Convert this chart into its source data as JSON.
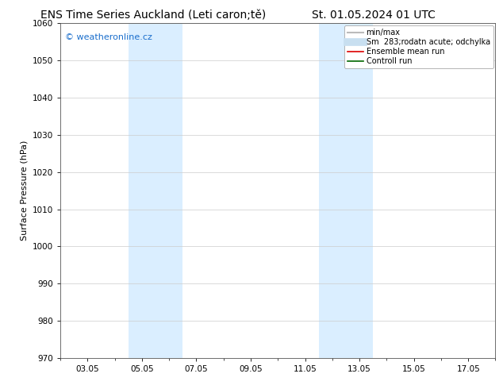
{
  "title_left": "ENS Time Series Auckland (Leti caron;tě)",
  "title_right": "St. 01.05.2024 01 UTC",
  "ylabel": "Surface Pressure (hPa)",
  "ylim": [
    970,
    1060
  ],
  "yticks": [
    970,
    980,
    990,
    1000,
    1010,
    1020,
    1030,
    1040,
    1050,
    1060
  ],
  "xtick_labels": [
    "03.05",
    "05.05",
    "07.05",
    "09.05",
    "11.05",
    "13.05",
    "15.05",
    "17.05"
  ],
  "xtick_positions": [
    2,
    4,
    6,
    8,
    10,
    12,
    14,
    16
  ],
  "xlim": [
    1,
    17
  ],
  "watermark": "© weatheronline.cz",
  "watermark_color": "#1a6ecc",
  "bg_color": "#ffffff",
  "plot_bg_color": "#ffffff",
  "shaded_regions": [
    {
      "xmin": 3.5,
      "xmax": 5.5,
      "color": "#daeeff"
    },
    {
      "xmin": 10.5,
      "xmax": 12.5,
      "color": "#daeeff"
    }
  ],
  "legend_entries": [
    {
      "label": "min/max",
      "color": "#bbbbbb",
      "lw": 1.5,
      "ls": "-"
    },
    {
      "label": "Sm  283;rodatn acute; odchylka",
      "color": "#c8dff0",
      "lw": 7,
      "ls": "-"
    },
    {
      "label": "Ensemble mean run",
      "color": "#dd0000",
      "lw": 1.2,
      "ls": "-"
    },
    {
      "label": "Controll run",
      "color": "#006600",
      "lw": 1.2,
      "ls": "-"
    }
  ],
  "grid_color": "#cccccc",
  "title_fontsize": 10,
  "tick_fontsize": 7.5,
  "ylabel_fontsize": 8,
  "legend_fontsize": 7,
  "watermark_fontsize": 8
}
